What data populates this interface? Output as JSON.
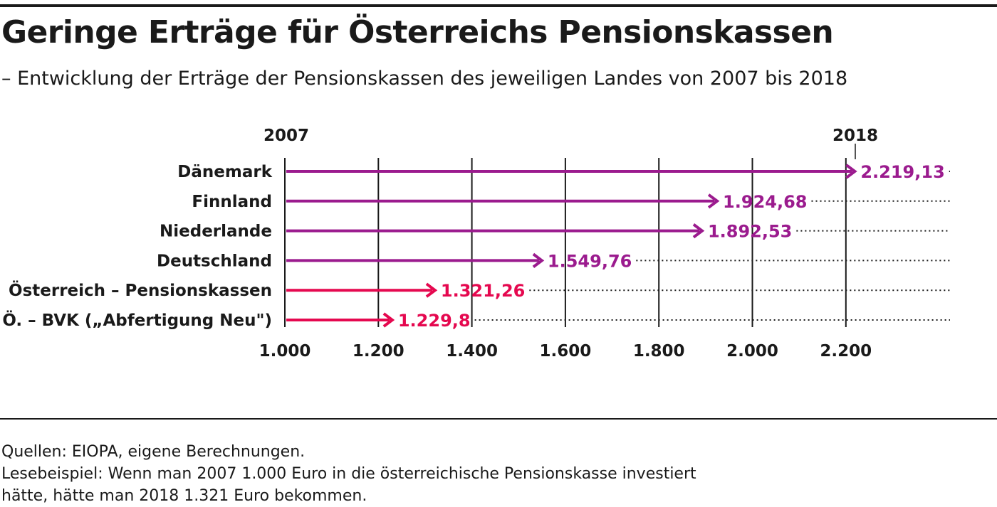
{
  "title": "Geringe Erträge für Österreichs Pensionskassen",
  "subtitle": "– Entwicklung der Erträge der Pensionskassen des jeweiligen Landes von 2007 bis 2018",
  "colors": {
    "purple": "#9b1b8e",
    "red": "#e5084f",
    "text": "#1a1a1a"
  },
  "chart_data": {
    "type": "bar",
    "start_label": "2007",
    "end_label": "2018",
    "categories": [
      "Dänemark",
      "Finnland",
      "Niederlande",
      "Deutschland",
      "Österreich – Pensionskassen",
      "Ö. – BVK („Abfertigung Neu\")"
    ],
    "values": [
      2219.13,
      1924.68,
      1892.53,
      1549.76,
      1321.26,
      1229.8
    ],
    "value_labels": [
      "2.219,13",
      "1.924,68",
      "1.892,53",
      "1.549,76",
      "1.321,26",
      "1.229,8"
    ],
    "bar_colors": [
      "purple",
      "purple",
      "purple",
      "purple",
      "red",
      "red"
    ],
    "baseline": 1000,
    "xlim": [
      1000,
      2200
    ],
    "ticks": [
      1000,
      1200,
      1400,
      1600,
      1800,
      2000,
      2200
    ],
    "tick_labels": [
      "1.000",
      "1.200",
      "1.400",
      "1.600",
      "1.800",
      "2.000",
      "2.200"
    ],
    "grid": true
  },
  "footer": {
    "line1": "Quellen: EIOPA, eigene Berechnungen.",
    "line2": "Lesebeispiel: Wenn man 2007 1.000 Euro in die österreichische Pensionskasse investiert",
    "line3": "hätte, hätte man 2018 1.321 Euro bekommen."
  }
}
